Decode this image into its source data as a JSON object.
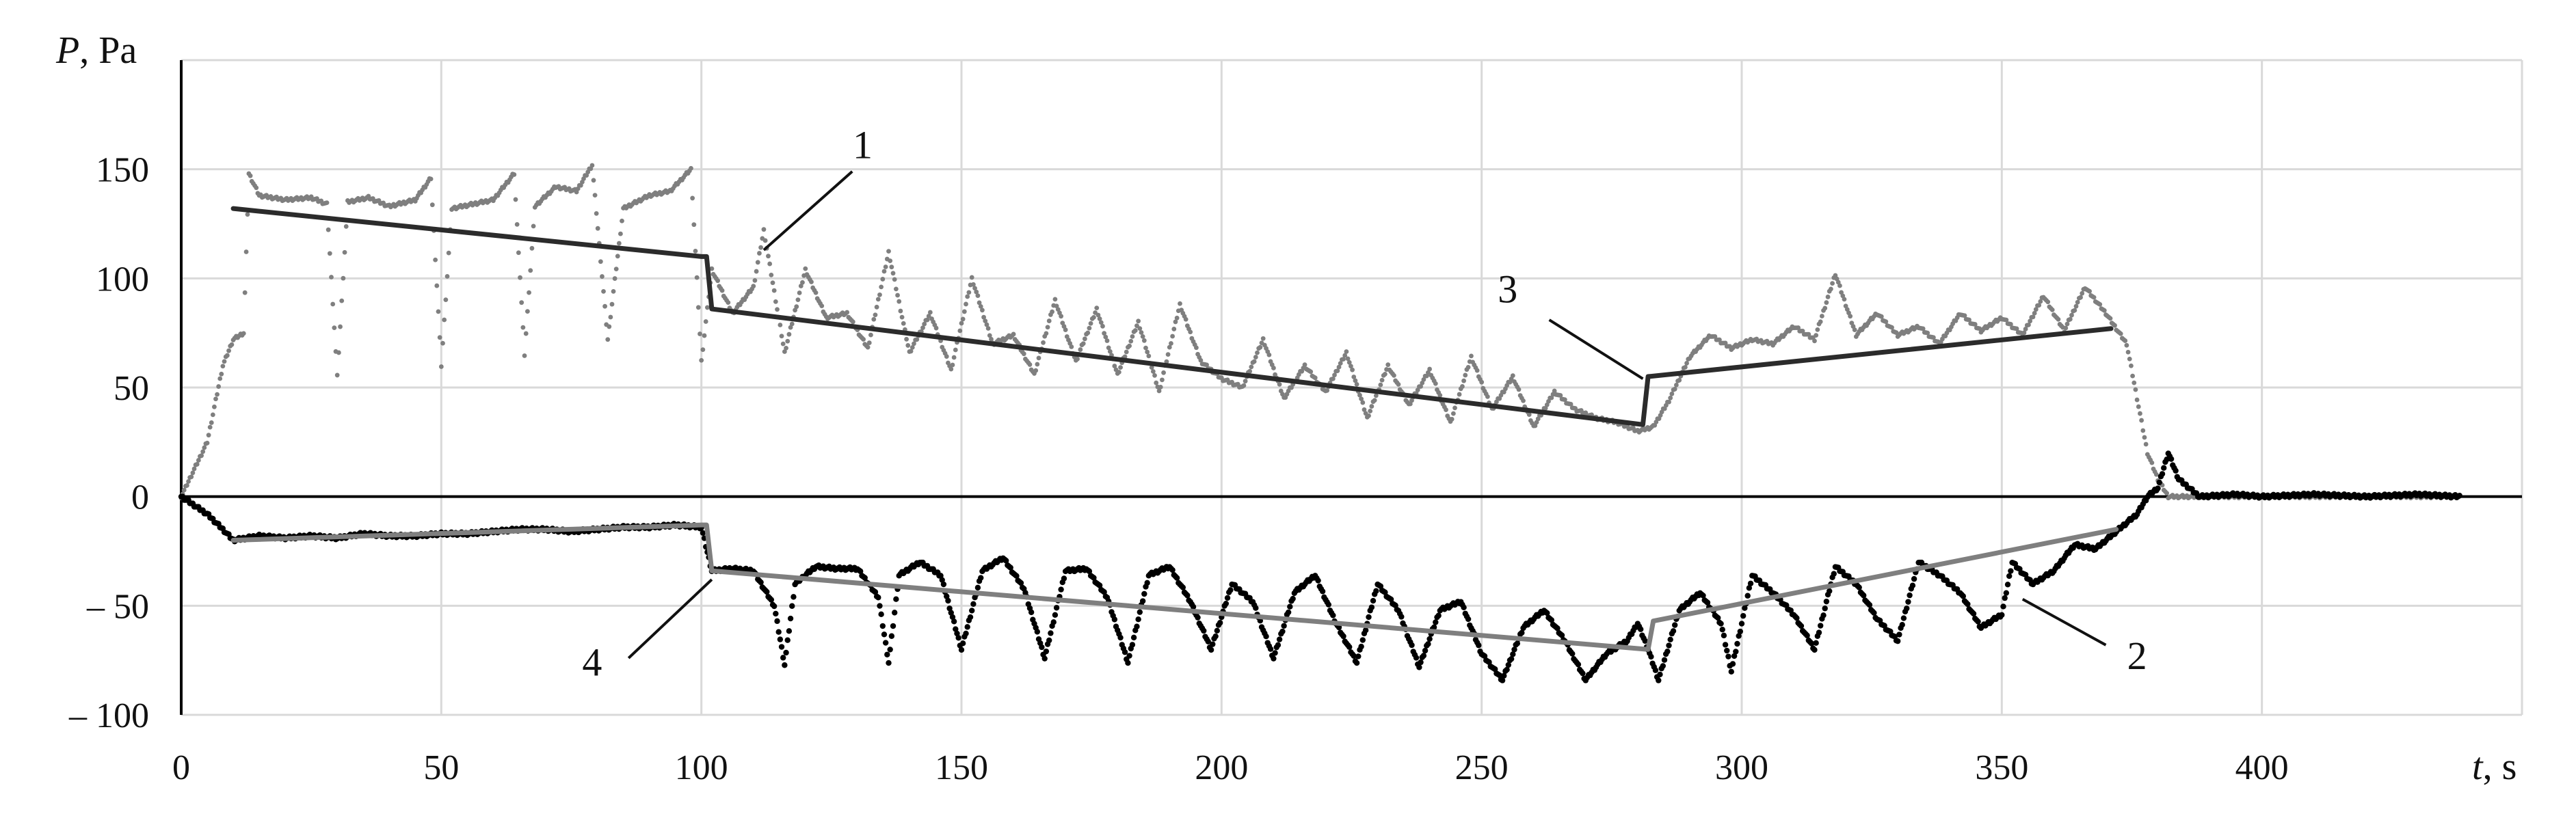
{
  "chart_data": {
    "type": "line",
    "title": "",
    "xlabel": "t, s",
    "ylabel": "P, Pa",
    "xlim": [
      0,
      450
    ],
    "ylim": [
      -100,
      200
    ],
    "x_ticks": [
      0,
      50,
      100,
      150,
      200,
      250,
      300,
      350,
      400
    ],
    "y_ticks": [
      -100,
      -50,
      0,
      50,
      100,
      150
    ],
    "x_tick_labels": [
      "0",
      "50",
      "100",
      "150",
      "200",
      "250",
      "300",
      "350",
      "400"
    ],
    "y_tick_labels": [
      "– 100",
      "– 50",
      "0",
      "50",
      "100",
      "150"
    ],
    "grid": "on",
    "legend": "none",
    "annotations": [
      {
        "label": "1",
        "target_series": "1"
      },
      {
        "label": "2",
        "target_series": "2"
      },
      {
        "label": "3",
        "target_series": "3"
      },
      {
        "label": "4",
        "target_series": "4"
      }
    ],
    "series": [
      {
        "name": "1",
        "style": "dotted",
        "color": "#7f7f7f",
        "points": [
          [
            0,
            0
          ],
          [
            5,
            25
          ],
          [
            8,
            60
          ],
          [
            10,
            72
          ],
          [
            12,
            75
          ],
          [
            13,
            148
          ],
          [
            15,
            138
          ],
          [
            20,
            136
          ],
          [
            25,
            137
          ],
          [
            28,
            134
          ],
          [
            30,
            55
          ],
          [
            32,
            135
          ],
          [
            36,
            137
          ],
          [
            40,
            133
          ],
          [
            45,
            136
          ],
          [
            48,
            146
          ],
          [
            50,
            60
          ],
          [
            52,
            132
          ],
          [
            56,
            134
          ],
          [
            60,
            136
          ],
          [
            64,
            148
          ],
          [
            66,
            65
          ],
          [
            68,
            133
          ],
          [
            72,
            142
          ],
          [
            76,
            140
          ],
          [
            79,
            152
          ],
          [
            82,
            72
          ],
          [
            85,
            132
          ],
          [
            90,
            138
          ],
          [
            94,
            140
          ],
          [
            98,
            150
          ],
          [
            100,
            62
          ],
          [
            102,
            104
          ],
          [
            106,
            84
          ],
          [
            110,
            96
          ],
          [
            112,
            122
          ],
          [
            116,
            66
          ],
          [
            120,
            104
          ],
          [
            124,
            82
          ],
          [
            128,
            84
          ],
          [
            132,
            68
          ],
          [
            136,
            112
          ],
          [
            140,
            66
          ],
          [
            144,
            84
          ],
          [
            148,
            58
          ],
          [
            152,
            100
          ],
          [
            156,
            70
          ],
          [
            160,
            74
          ],
          [
            164,
            56
          ],
          [
            168,
            90
          ],
          [
            172,
            62
          ],
          [
            176,
            86
          ],
          [
            180,
            56
          ],
          [
            184,
            80
          ],
          [
            188,
            48
          ],
          [
            192,
            88
          ],
          [
            196,
            62
          ],
          [
            200,
            54
          ],
          [
            204,
            50
          ],
          [
            208,
            72
          ],
          [
            212,
            45
          ],
          [
            216,
            60
          ],
          [
            220,
            48
          ],
          [
            224,
            66
          ],
          [
            228,
            36
          ],
          [
            232,
            60
          ],
          [
            236,
            42
          ],
          [
            240,
            58
          ],
          [
            244,
            34
          ],
          [
            248,
            64
          ],
          [
            252,
            40
          ],
          [
            256,
            55
          ],
          [
            260,
            32
          ],
          [
            264,
            48
          ],
          [
            268,
            40
          ],
          [
            272,
            36
          ],
          [
            276,
            34
          ],
          [
            280,
            30
          ],
          [
            283,
            32
          ],
          [
            286,
            44
          ],
          [
            290,
            64
          ],
          [
            294,
            74
          ],
          [
            298,
            68
          ],
          [
            302,
            72
          ],
          [
            306,
            70
          ],
          [
            310,
            78
          ],
          [
            314,
            72
          ],
          [
            318,
            102
          ],
          [
            322,
            74
          ],
          [
            326,
            84
          ],
          [
            330,
            74
          ],
          [
            334,
            78
          ],
          [
            338,
            70
          ],
          [
            342,
            84
          ],
          [
            346,
            76
          ],
          [
            350,
            82
          ],
          [
            354,
            74
          ],
          [
            358,
            92
          ],
          [
            362,
            76
          ],
          [
            366,
            96
          ],
          [
            370,
            84
          ],
          [
            374,
            70
          ],
          [
            378,
            20
          ],
          [
            380,
            8
          ],
          [
            382,
            0
          ],
          [
            390,
            0
          ],
          [
            400,
            0
          ],
          [
            410,
            0
          ],
          [
            420,
            0
          ],
          [
            430,
            0
          ],
          [
            438,
            0
          ]
        ]
      },
      {
        "name": "2",
        "style": "dotted",
        "color": "#000000",
        "points": [
          [
            0,
            0
          ],
          [
            5,
            -8
          ],
          [
            8,
            -15
          ],
          [
            10,
            -20
          ],
          [
            15,
            -18
          ],
          [
            20,
            -19
          ],
          [
            25,
            -18
          ],
          [
            30,
            -19
          ],
          [
            35,
            -17
          ],
          [
            40,
            -18
          ],
          [
            45,
            -18
          ],
          [
            50,
            -17
          ],
          [
            55,
            -17
          ],
          [
            60,
            -16
          ],
          [
            65,
            -15
          ],
          [
            70,
            -15
          ],
          [
            75,
            -16
          ],
          [
            80,
            -15
          ],
          [
            85,
            -14
          ],
          [
            90,
            -14
          ],
          [
            95,
            -13
          ],
          [
            100,
            -14
          ],
          [
            102,
            -34
          ],
          [
            106,
            -33
          ],
          [
            110,
            -34
          ],
          [
            114,
            -50
          ],
          [
            116,
            -77
          ],
          [
            118,
            -40
          ],
          [
            122,
            -32
          ],
          [
            126,
            -33
          ],
          [
            130,
            -33
          ],
          [
            134,
            -46
          ],
          [
            136,
            -76
          ],
          [
            138,
            -36
          ],
          [
            142,
            -30
          ],
          [
            146,
            -36
          ],
          [
            150,
            -70
          ],
          [
            154,
            -34
          ],
          [
            158,
            -28
          ],
          [
            162,
            -42
          ],
          [
            166,
            -74
          ],
          [
            170,
            -34
          ],
          [
            174,
            -33
          ],
          [
            178,
            -46
          ],
          [
            182,
            -76
          ],
          [
            186,
            -36
          ],
          [
            190,
            -32
          ],
          [
            194,
            -48
          ],
          [
            198,
            -70
          ],
          [
            202,
            -40
          ],
          [
            206,
            -48
          ],
          [
            210,
            -74
          ],
          [
            214,
            -44
          ],
          [
            218,
            -36
          ],
          [
            222,
            -58
          ],
          [
            226,
            -76
          ],
          [
            230,
            -40
          ],
          [
            234,
            -52
          ],
          [
            238,
            -78
          ],
          [
            242,
            -52
          ],
          [
            246,
            -48
          ],
          [
            250,
            -72
          ],
          [
            254,
            -84
          ],
          [
            258,
            -60
          ],
          [
            262,
            -52
          ],
          [
            266,
            -66
          ],
          [
            270,
            -84
          ],
          [
            274,
            -72
          ],
          [
            278,
            -66
          ],
          [
            280,
            -58
          ],
          [
            282,
            -70
          ],
          [
            284,
            -84
          ],
          [
            288,
            -52
          ],
          [
            292,
            -44
          ],
          [
            296,
            -58
          ],
          [
            298,
            -80
          ],
          [
            302,
            -36
          ],
          [
            306,
            -44
          ],
          [
            310,
            -54
          ],
          [
            314,
            -70
          ],
          [
            318,
            -32
          ],
          [
            322,
            -40
          ],
          [
            326,
            -56
          ],
          [
            330,
            -66
          ],
          [
            334,
            -30
          ],
          [
            338,
            -36
          ],
          [
            342,
            -44
          ],
          [
            346,
            -60
          ],
          [
            350,
            -54
          ],
          [
            352,
            -30
          ],
          [
            356,
            -40
          ],
          [
            360,
            -34
          ],
          [
            364,
            -22
          ],
          [
            368,
            -24
          ],
          [
            372,
            -16
          ],
          [
            376,
            -8
          ],
          [
            378,
            0
          ],
          [
            380,
            4
          ],
          [
            382,
            20
          ],
          [
            384,
            8
          ],
          [
            388,
            0
          ],
          [
            395,
            1
          ],
          [
            400,
            0
          ],
          [
            410,
            1
          ],
          [
            420,
            0
          ],
          [
            430,
            1
          ],
          [
            438,
            0
          ]
        ]
      },
      {
        "name": "3",
        "style": "solid",
        "color": "#2b2b2b",
        "points": [
          [
            10,
            132
          ],
          [
            100,
            110
          ],
          [
            101,
            110
          ],
          [
            102,
            86
          ],
          [
            281,
            33
          ],
          [
            282,
            55
          ],
          [
            371,
            77
          ]
        ]
      },
      {
        "name": "4",
        "style": "solid",
        "color": "#7f7f7f",
        "points": [
          [
            10,
            -20
          ],
          [
            100,
            -13
          ],
          [
            101,
            -13
          ],
          [
            102,
            -34
          ],
          [
            282,
            -70
          ],
          [
            283,
            -57
          ],
          [
            372,
            -15
          ]
        ]
      }
    ]
  }
}
